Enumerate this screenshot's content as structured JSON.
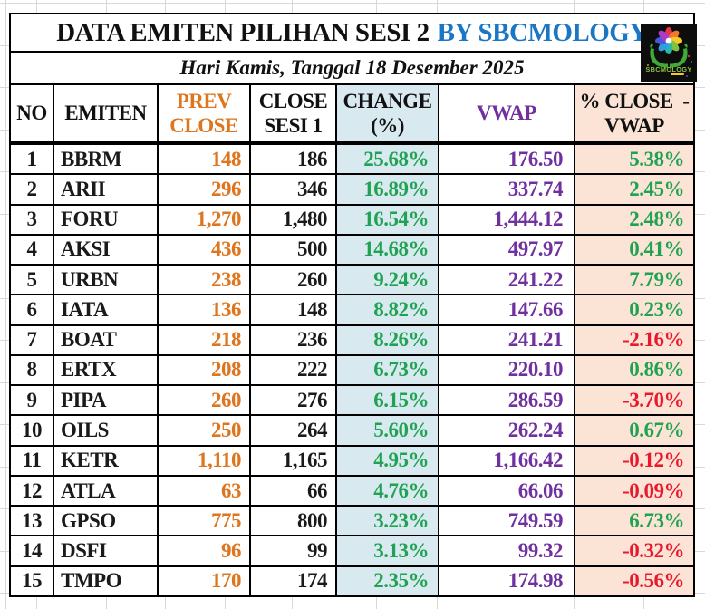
{
  "title": {
    "main": "DATA EMITEN PILIHAN SESI 2",
    "brand": "BY SBCMOLOGY"
  },
  "subtitle": "Hari Kamis, Tanggal 18 Desember 2025",
  "logo": {
    "brand": "SBCMOLOGY",
    "bg": "#0d0d0d",
    "hand_color": "#3faa35",
    "text_color": "#8cc63f",
    "petal_colors": [
      "#e8334a",
      "#f2772b",
      "#f7c928",
      "#7dc242",
      "#29b7a8",
      "#2e9fe6",
      "#4757d8",
      "#a83bc9"
    ]
  },
  "colors": {
    "brand_blue": "#1b76c4",
    "orange": "#de751f",
    "green": "#1fa352",
    "red": "#e8192c",
    "purple": "#7030a0",
    "change_bg": "#d9e9f0",
    "vwap_diff_bg": "#fbe3d5",
    "border": "#000000",
    "gridline": "#d8d8d8"
  },
  "table": {
    "columns": [
      {
        "key": "no",
        "class": "no",
        "lines": [
          "NO"
        ]
      },
      {
        "key": "emiten",
        "class": "emiten",
        "lines": [
          "EMITEN"
        ]
      },
      {
        "key": "prev_close",
        "class": "prev",
        "lines": [
          "PREV",
          "CLOSE"
        ]
      },
      {
        "key": "close_sesi1",
        "class": "close",
        "lines": [
          "CLOSE",
          "SESI 1"
        ]
      },
      {
        "key": "change_pct",
        "class": "chg",
        "lines": [
          "CHANGE",
          "(%)"
        ]
      },
      {
        "key": "vwap",
        "class": "vwap",
        "lines": [
          "VWAP"
        ]
      },
      {
        "key": "pct_close_vwap",
        "class": "cv",
        "lines": [
          "% CLOSE  -",
          "VWAP"
        ]
      }
    ],
    "rows": [
      {
        "no": "1",
        "emiten": "BBRM",
        "prev_close": "148",
        "close_sesi1": "186",
        "change_pct": "25.68%",
        "vwap": "176.50",
        "pct_close_vwap": "5.38%"
      },
      {
        "no": "2",
        "emiten": "ARII",
        "prev_close": "296",
        "close_sesi1": "346",
        "change_pct": "16.89%",
        "vwap": "337.74",
        "pct_close_vwap": "2.45%"
      },
      {
        "no": "3",
        "emiten": "FORU",
        "prev_close": "1,270",
        "close_sesi1": "1,480",
        "change_pct": "16.54%",
        "vwap": "1,444.12",
        "pct_close_vwap": "2.48%"
      },
      {
        "no": "4",
        "emiten": "AKSI",
        "prev_close": "436",
        "close_sesi1": "500",
        "change_pct": "14.68%",
        "vwap": "497.97",
        "pct_close_vwap": "0.41%"
      },
      {
        "no": "5",
        "emiten": "URBN",
        "prev_close": "238",
        "close_sesi1": "260",
        "change_pct": "9.24%",
        "vwap": "241.22",
        "pct_close_vwap": "7.79%"
      },
      {
        "no": "6",
        "emiten": "IATA",
        "prev_close": "136",
        "close_sesi1": "148",
        "change_pct": "8.82%",
        "vwap": "147.66",
        "pct_close_vwap": "0.23%"
      },
      {
        "no": "7",
        "emiten": "BOAT",
        "prev_close": "218",
        "close_sesi1": "236",
        "change_pct": "8.26%",
        "vwap": "241.21",
        "pct_close_vwap": "-2.16%"
      },
      {
        "no": "8",
        "emiten": "ERTX",
        "prev_close": "208",
        "close_sesi1": "222",
        "change_pct": "6.73%",
        "vwap": "220.10",
        "pct_close_vwap": "0.86%"
      },
      {
        "no": "9",
        "emiten": "PIPA",
        "prev_close": "260",
        "close_sesi1": "276",
        "change_pct": "6.15%",
        "vwap": "286.59",
        "pct_close_vwap": "-3.70%"
      },
      {
        "no": "10",
        "emiten": "OILS",
        "prev_close": "250",
        "close_sesi1": "264",
        "change_pct": "5.60%",
        "vwap": "262.24",
        "pct_close_vwap": "0.67%"
      },
      {
        "no": "11",
        "emiten": "KETR",
        "prev_close": "1,110",
        "close_sesi1": "1,165",
        "change_pct": "4.95%",
        "vwap": "1,166.42",
        "pct_close_vwap": "-0.12%"
      },
      {
        "no": "12",
        "emiten": "ATLA",
        "prev_close": "63",
        "close_sesi1": "66",
        "change_pct": "4.76%",
        "vwap": "66.06",
        "pct_close_vwap": "-0.09%"
      },
      {
        "no": "13",
        "emiten": "GPSO",
        "prev_close": "775",
        "close_sesi1": "800",
        "change_pct": "3.23%",
        "vwap": "749.59",
        "pct_close_vwap": "6.73%"
      },
      {
        "no": "14",
        "emiten": "DSFI",
        "prev_close": "96",
        "close_sesi1": "99",
        "change_pct": "3.13%",
        "vwap": "99.32",
        "pct_close_vwap": "-0.32%"
      },
      {
        "no": "15",
        "emiten": "TMPO",
        "prev_close": "170",
        "close_sesi1": "174",
        "change_pct": "2.35%",
        "vwap": "174.98",
        "pct_close_vwap": "-0.56%"
      }
    ]
  }
}
